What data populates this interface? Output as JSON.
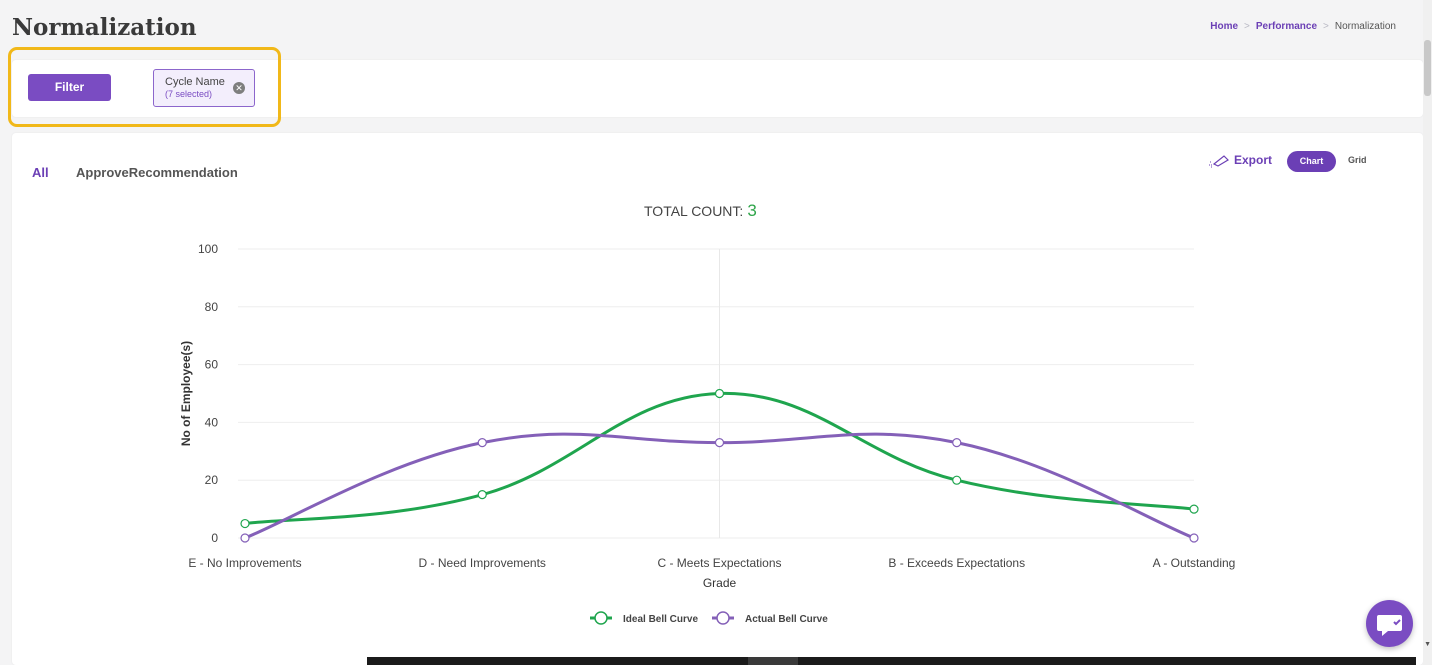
{
  "header": {
    "title": "Normalization",
    "breadcrumb": [
      {
        "label": "Home",
        "link": true
      },
      {
        "label": "Performance",
        "link": true
      },
      {
        "label": "Normalization",
        "link": false
      }
    ],
    "separator": ">"
  },
  "filters": {
    "button_label": "Filter",
    "chip": {
      "title": "Cycle Name",
      "subtitle": "(7 selected)",
      "close_icon": "close-circle-icon"
    }
  },
  "tabs": [
    {
      "label": "All",
      "active": true
    },
    {
      "label": "ApproveRecommendation",
      "active": false
    }
  ],
  "toolbar": {
    "export_label": "Export",
    "export_icon": "export-icon",
    "view_toggle": {
      "chart_label": "Chart",
      "grid_label": "Grid",
      "active": "Chart"
    }
  },
  "summary": {
    "label": "TOTAL COUNT:",
    "value": "3"
  },
  "colors": {
    "accent": "#7a4cc2",
    "ideal": "#1fa54e",
    "actual": "#8460b8",
    "count": "#2fa54a",
    "highlight": "#f1b819"
  },
  "chart_data": {
    "type": "line",
    "categories": [
      "E - No Improvements",
      "D - Need Improvements",
      "C - Meets Expectations",
      "B - Exceeds Expectations",
      "A - Outstanding"
    ],
    "series": [
      {
        "name": "Ideal Bell Curve",
        "values": [
          5,
          15,
          50,
          20,
          10
        ],
        "color": "#1fa54e"
      },
      {
        "name": "Actual Bell Curve",
        "values": [
          0,
          33,
          33,
          33,
          0
        ],
        "color": "#8460b8"
      }
    ],
    "xlabel": "Grade",
    "ylabel": "No of Employee(s)",
    "ylim": [
      0,
      100
    ],
    "yticks": [
      0,
      20,
      40,
      60,
      80,
      100
    ],
    "grid": true,
    "legend": "bottom-center",
    "smooth": true
  }
}
